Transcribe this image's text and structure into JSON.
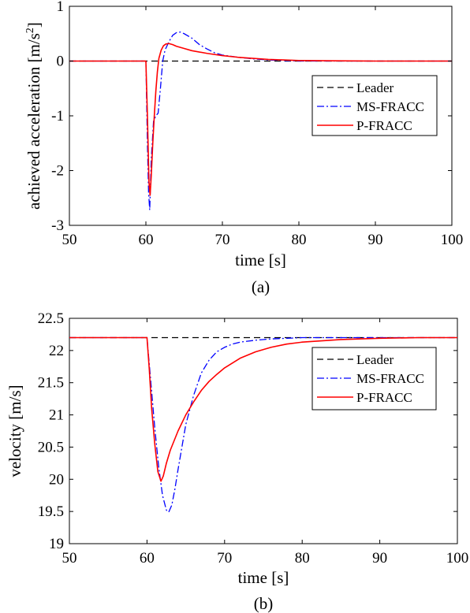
{
  "chart_data": [
    {
      "type": "line",
      "caption": "(a)",
      "xlabel": "time [s]",
      "ylabel": "achieved acceleration [m/s",
      "ylabel_sup": "2",
      "ylabel_end": "]",
      "xlim": [
        50,
        100
      ],
      "ylim": [
        -3,
        1
      ],
      "xticks": [
        "50",
        "60",
        "70",
        "80",
        "90",
        "100"
      ],
      "yticks": [
        "-3",
        "-2",
        "-1",
        "0",
        "1"
      ],
      "grid": false,
      "legend": "right",
      "series": [
        {
          "name": "Leader",
          "color": "#000000",
          "dash": "dashed",
          "x": [
            50,
            100
          ],
          "y": [
            0,
            0
          ]
        },
        {
          "name": "MS-FRACC",
          "color": "#0000ff",
          "dash": "dashdot",
          "x": [
            50,
            60,
            60.2,
            60.35,
            60.5,
            60.7,
            61,
            61.3,
            61.6,
            61.9,
            62.2,
            62.5,
            63,
            63.5,
            64,
            64.5,
            65,
            66,
            67,
            68,
            69,
            70,
            72,
            74,
            76,
            78,
            80,
            85,
            90,
            95,
            100
          ],
          "y": [
            0,
            0,
            -1.5,
            -2.4,
            -2.72,
            -1.8,
            -1.1,
            -1.0,
            -0.95,
            -0.5,
            0.0,
            0.2,
            0.35,
            0.47,
            0.52,
            0.53,
            0.5,
            0.42,
            0.3,
            0.22,
            0.15,
            0.11,
            0.07,
            0.04,
            0.02,
            0.01,
            0.0,
            0,
            0,
            0,
            0
          ]
        },
        {
          "name": "P-FRACC",
          "color": "#ff0000",
          "dash": "solid",
          "x": [
            50,
            60,
            60.2,
            60.4,
            60.55,
            60.7,
            60.9,
            61.1,
            61.3,
            61.5,
            61.7,
            62,
            62.3,
            62.6,
            63,
            63.5,
            64,
            65,
            66,
            68,
            70,
            72,
            74,
            76,
            78,
            80,
            85,
            90,
            95,
            100
          ],
          "y": [
            0,
            0,
            -1.0,
            -2.2,
            -2.45,
            -2.1,
            -1.5,
            -1.0,
            -0.55,
            -0.2,
            0.05,
            0.2,
            0.28,
            0.31,
            0.32,
            0.3,
            0.27,
            0.23,
            0.19,
            0.14,
            0.1,
            0.07,
            0.05,
            0.03,
            0.02,
            0.01,
            0.005,
            0,
            0,
            0
          ]
        }
      ]
    },
    {
      "type": "line",
      "caption": "(b)",
      "xlabel": "time [s]",
      "ylabel": "velocity [m/s]",
      "xlim": [
        50,
        100
      ],
      "ylim": [
        19,
        22.5
      ],
      "xticks": [
        "50",
        "60",
        "70",
        "80",
        "90",
        "100"
      ],
      "yticks": [
        "19",
        "19.5",
        "20",
        "20.5",
        "21",
        "21.5",
        "22",
        "22.5"
      ],
      "grid": false,
      "legend": "right",
      "series": [
        {
          "name": "Leader",
          "color": "#000000",
          "dash": "dashed",
          "x": [
            50,
            100
          ],
          "y": [
            22.2,
            22.2
          ]
        },
        {
          "name": "MS-FRACC",
          "color": "#0000ff",
          "dash": "dashdot",
          "x": [
            50,
            60,
            60.5,
            61,
            61.5,
            62,
            62.5,
            62.8,
            63.2,
            63.6,
            64,
            64.5,
            65,
            66,
            67,
            68,
            69,
            70,
            71,
            72,
            74,
            76,
            78,
            80,
            85,
            90,
            100
          ],
          "y": [
            22.2,
            22.2,
            21.5,
            20.8,
            20.2,
            19.75,
            19.52,
            19.49,
            19.6,
            19.85,
            20.15,
            20.5,
            20.85,
            21.3,
            21.65,
            21.85,
            21.98,
            22.05,
            22.1,
            22.13,
            22.16,
            22.18,
            22.19,
            22.2,
            22.2,
            22.2,
            22.2
          ]
        },
        {
          "name": "P-FRACC",
          "color": "#ff0000",
          "dash": "solid",
          "x": [
            50,
            60,
            60.3,
            60.6,
            61,
            61.4,
            61.8,
            62.1,
            62.5,
            63,
            64,
            65,
            66,
            67,
            68,
            69,
            70,
            72,
            74,
            76,
            78,
            80,
            85,
            90,
            95,
            100
          ],
          "y": [
            22.2,
            22.2,
            21.7,
            21.1,
            20.55,
            20.12,
            19.97,
            20.05,
            20.25,
            20.45,
            20.75,
            21.0,
            21.2,
            21.38,
            21.52,
            21.63,
            21.73,
            21.88,
            21.98,
            22.05,
            22.1,
            22.13,
            22.17,
            22.19,
            22.2,
            22.2
          ]
        }
      ]
    }
  ]
}
